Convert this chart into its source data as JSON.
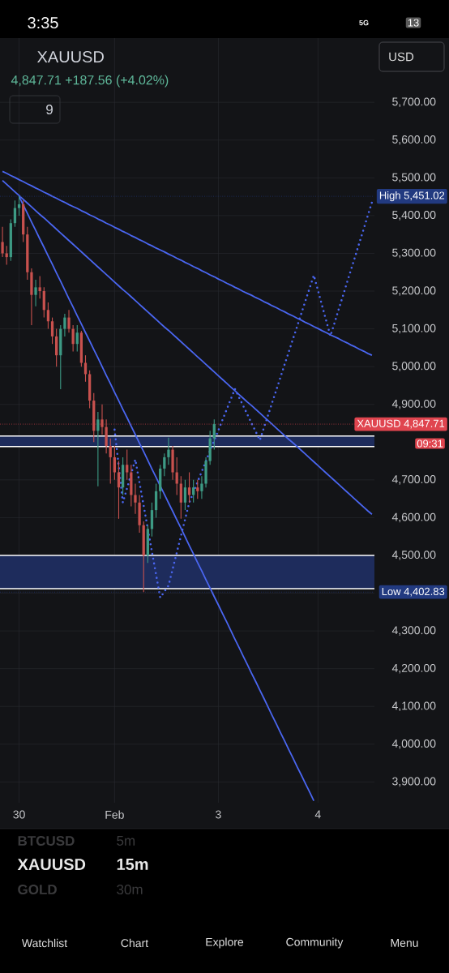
{
  "chart_data": {
    "type": "candlestick",
    "title": "XAUUSD",
    "subtitle": "4,847.71 +187.56 (+4.02%)",
    "categories": [
      null,
      null,
      null,
      null,
      "30",
      null,
      null,
      null,
      null,
      null,
      null,
      null,
      null,
      null,
      null,
      null,
      null,
      null,
      null,
      null,
      null,
      null,
      null,
      null,
      null,
      null,
      null,
      "Feb",
      null,
      null,
      null,
      null,
      null,
      null,
      null,
      null,
      null,
      null,
      null,
      null,
      null,
      null,
      null,
      null,
      null,
      null,
      null,
      null,
      null,
      null,
      null,
      null,
      "3",
      null,
      null,
      null,
      null,
      null,
      null,
      null,
      null,
      null,
      null,
      null,
      null,
      null,
      null,
      null,
      null,
      null,
      null,
      null,
      null,
      null,
      null,
      null,
      "4",
      null,
      null,
      null,
      null,
      null,
      null,
      null,
      null,
      null,
      null,
      null,
      null,
      null
    ],
    "ohlc": [
      [
        5330,
        5370,
        5290,
        5300
      ],
      [
        5300,
        5320,
        5270,
        5290
      ],
      [
        5290,
        5390,
        5280,
        5380
      ],
      [
        5380,
        5440,
        5370,
        5420
      ],
      [
        5420,
        5451.02,
        5400,
        5430
      ],
      [
        5430,
        5440,
        5330,
        5350
      ],
      [
        5350,
        5370,
        5230,
        5250
      ],
      [
        5250,
        5260,
        5110,
        5190
      ],
      [
        5190,
        5230,
        5160,
        5210
      ],
      [
        5210,
        5240,
        5180,
        5200
      ],
      [
        5200,
        5210,
        5130,
        5150
      ],
      [
        5150,
        5170,
        5100,
        5120
      ],
      [
        5120,
        5130,
        5060,
        5080
      ],
      [
        5080,
        5100,
        5000,
        5030
      ],
      [
        5030,
        5110,
        4940,
        5100
      ],
      [
        5100,
        5140,
        5080,
        5130
      ],
      [
        5130,
        5150,
        5090,
        5100
      ],
      [
        5100,
        5110,
        5040,
        5060
      ],
      [
        5060,
        5110,
        5040,
        5090
      ],
      [
        5090,
        5095,
        5000,
        5010
      ],
      [
        5010,
        5030,
        4960,
        4980
      ],
      [
        4980,
        4990,
        4890,
        4910
      ],
      [
        4910,
        4930,
        4800,
        4830
      ],
      [
        4830,
        4880,
        4683,
        4860
      ],
      [
        4860,
        4900,
        4820,
        4840
      ],
      [
        4840,
        4860,
        4770,
        4790
      ],
      [
        4790,
        4810,
        4690,
        4760
      ],
      [
        4760,
        4790,
        4700,
        4720
      ],
      [
        4720,
        4750,
        4597,
        4680
      ],
      [
        4680,
        4760,
        4660,
        4740
      ],
      [
        4740,
        4780,
        4700,
        4720
      ],
      [
        4720,
        4740,
        4630,
        4660
      ],
      [
        4660,
        4690,
        4610,
        4640
      ],
      [
        4640,
        4660,
        4560,
        4580
      ],
      [
        4580,
        4590,
        4402.83,
        4500
      ],
      [
        4500,
        4580,
        4480,
        4570
      ],
      [
        4570,
        4640,
        4550,
        4620
      ],
      [
        4620,
        4690,
        4600,
        4670
      ],
      [
        4670,
        4740,
        4650,
        4730
      ],
      [
        4730,
        4770,
        4710,
        4760
      ],
      [
        4760,
        4812,
        4740,
        4780
      ],
      [
        4780,
        4790,
        4700,
        4720
      ],
      [
        4720,
        4760,
        4660,
        4690
      ],
      [
        4690,
        4710,
        4597,
        4640
      ],
      [
        4640,
        4700,
        4620,
        4680
      ],
      [
        4680,
        4720,
        4640,
        4660
      ],
      [
        4660,
        4700,
        4640,
        4680
      ],
      [
        4680,
        4700,
        4650,
        4670
      ],
      [
        4670,
        4710,
        4650,
        4690
      ],
      [
        4690,
        4760,
        4680,
        4750
      ],
      [
        4750,
        4830,
        4740,
        4810
      ],
      [
        4810,
        4860,
        4780,
        4847.71
      ],
      null,
      null,
      null,
      null,
      null,
      null,
      null,
      null,
      null,
      null,
      null,
      null,
      null,
      null,
      null,
      null,
      null,
      null,
      null,
      null,
      null,
      null,
      null,
      null,
      null,
      null,
      null,
      null,
      null,
      null,
      null,
      null,
      null,
      null,
      null,
      null,
      null,
      null
    ],
    "colors": [
      "#c8514e",
      "#c8514e",
      "#3d9a84",
      "#3d9a84",
      "#3d9a84",
      "#c8514e",
      "#c8514e",
      "#c8514e",
      "#3d9a84",
      "#c8514e",
      "#c8514e",
      "#c8514e",
      "#c8514e",
      "#c8514e",
      "#3d9a84",
      "#3d9a84",
      "#c8514e",
      "#c8514e",
      "#3d9a84",
      "#c8514e",
      "#c8514e",
      "#c8514e",
      "#c8514e",
      "#3d9a84",
      "#c8514e",
      "#c8514e",
      "#c8514e",
      "#c8514e",
      "#c8514e",
      "#3d9a84",
      "#c8514e",
      "#c8514e",
      "#c8514e",
      "#c8514e",
      "#c8514e",
      "#3d9a84",
      "#3d9a84",
      "#3d9a84",
      "#3d9a84",
      "#3d9a84",
      "#3d9a84",
      "#c8514e",
      "#c8514e",
      "#c8514e",
      "#3d9a84",
      "#c8514e",
      "#3d9a84",
      "#c8514e",
      "#3d9a84",
      "#3d9a84",
      "#3d9a84",
      "#3d9a84",
      null,
      null,
      null,
      null,
      null,
      null,
      null,
      null,
      null,
      null,
      null,
      null,
      null,
      null,
      null,
      null,
      null,
      null,
      null,
      null,
      null,
      null,
      null,
      null,
      null,
      null,
      null,
      null,
      null,
      null,
      null,
      null,
      null,
      null,
      null,
      null,
      null,
      null
    ],
    "series": [
      {
        "type": "line",
        "color": "#4a66f0",
        "values": [
          5517,
          5512,
          5506,
          5501,
          5495,
          5490,
          5484,
          5479,
          5473,
          5468,
          5462,
          5457,
          5451,
          5446,
          5440,
          5435,
          5429,
          5424,
          5419,
          5413,
          5408,
          5402,
          5397,
          5391,
          5386,
          5380,
          5375,
          5369,
          5364,
          5358,
          5353,
          5347,
          5342,
          5336,
          5331,
          5325,
          5320,
          5314,
          5309,
          5304,
          5298,
          5293,
          5287,
          5282,
          5276,
          5271,
          5265,
          5260,
          5254,
          5249,
          5243,
          5238,
          5232,
          5227,
          5221,
          5216,
          5210,
          5205,
          5199,
          5194,
          5189,
          5183,
          5178,
          5172,
          5167,
          5161,
          5156,
          5150,
          5145,
          5139,
          5134,
          5128,
          5123,
          5117,
          5112,
          5106,
          5101,
          5095,
          5090,
          5084,
          5079,
          5074,
          5068,
          5063,
          5057,
          5052,
          5046,
          5041,
          5035,
          5030
        ]
      },
      {
        "type": "line",
        "color": "#4a66f0",
        "values": [
          5493,
          5483,
          5473,
          5463,
          5453,
          5443,
          5433,
          5423,
          5413,
          5403,
          5394,
          5384,
          5374,
          5364,
          5354,
          5344,
          5334,
          5324,
          5314,
          5304,
          5294,
          5284,
          5274,
          5264,
          5254,
          5244,
          5234,
          5224,
          5214,
          5204,
          5195,
          5185,
          5175,
          5165,
          5155,
          5145,
          5135,
          5125,
          5115,
          5105,
          5096,
          5086,
          5076,
          5066,
          5056,
          5046,
          5036,
          5026,
          5016,
          5006,
          4996,
          4986,
          4976,
          4966,
          4956,
          4946,
          4936,
          4926,
          4916,
          4906,
          4897,
          4887,
          4877,
          4867,
          4857,
          4847,
          4837,
          4827,
          4817,
          4807,
          4798,
          4788,
          4778,
          4768,
          4758,
          4748,
          4738,
          4728,
          4718,
          4708,
          4698,
          4688,
          4678,
          4668,
          4658,
          4648,
          4638,
          4628,
          4618,
          4609
        ]
      },
      {
        "type": "line",
        "color": "#4a66f0",
        "values": [
          null,
          null,
          null,
          null,
          5451,
          5428,
          5406,
          5383,
          5361,
          5338,
          5316,
          5293,
          5271,
          5248,
          5226,
          5203,
          5180,
          5158,
          5135,
          5113,
          5090,
          5068,
          5045,
          5023,
          5000,
          4977,
          4955,
          4932,
          4910,
          4887,
          4865,
          4842,
          4820,
          4797,
          4775,
          4752,
          4729,
          4707,
          4684,
          4662,
          4639,
          4617,
          4594,
          4572,
          4549,
          4526,
          4504,
          4481,
          4459,
          4436,
          4414,
          4391,
          4369,
          4346,
          4324,
          4301,
          4278,
          4256,
          4233,
          4211,
          4188,
          4166,
          4143,
          4121,
          4098,
          4075,
          4053,
          4030,
          4008,
          3985,
          3963,
          3940,
          3918,
          3895,
          3873,
          3850,
          null,
          null,
          null,
          null,
          null,
          null,
          null,
          null,
          null,
          null,
          null,
          null,
          null,
          null
        ]
      },
      {
        "type": "line",
        "color": "#4a66f0",
        "line_style": "dotted",
        "values": [
          null,
          null,
          null,
          null,
          null,
          null,
          null,
          null,
          null,
          null,
          null,
          null,
          null,
          null,
          null,
          null,
          null,
          null,
          null,
          null,
          null,
          null,
          null,
          null,
          null,
          null,
          null,
          4833,
          4737,
          4640,
          4678,
          4716,
          4754,
          4693,
          4632,
          4571,
          4510,
          4449,
          4388,
          4404,
          4420,
          4464,
          4508,
          4552,
          4596,
          4640,
          4667,
          4695,
          4722,
          4749,
          4777,
          4804,
          4831,
          4859,
          4886,
          4914,
          4941,
          4918,
          4896,
          4873,
          4850,
          4828,
          4805,
          4839,
          4872,
          4906,
          4939,
          4973,
          5007,
          5040,
          5074,
          5107,
          5141,
          5175,
          5208,
          5242,
          5202,
          5161,
          5121,
          5081,
          5116,
          5152,
          5187,
          5223,
          5258,
          5293,
          5329,
          5364,
          5400,
          5435
        ]
      }
    ],
    "bands": [
      {
        "axis": "y",
        "from": 4788,
        "to": 4816,
        "color": "#1e2c5c"
      },
      {
        "axis": "y",
        "from": 4412,
        "to": 4500,
        "color": "#1e2c5c"
      }
    ],
    "ref_lines": [
      {
        "axis": "y",
        "value": 5451.02,
        "label": "High 5,451.02",
        "color": "#223a80",
        "line_style": "dotted"
      },
      {
        "axis": "y",
        "value": 4402.83,
        "label": "Low 4,402.83",
        "color": "#223a80",
        "line_style": "dotted"
      },
      {
        "axis": "y",
        "value": 4847.71,
        "label": "XAUUSD 4,847.71",
        "color": "#e0454f",
        "line_style": "dotted"
      }
    ],
    "ylim": [
      3845,
      5870
    ],
    "yticks": [
      {
        "value": 5700,
        "label": "5,700.00"
      },
      {
        "value": 5600,
        "label": "5,600.00"
      },
      {
        "value": 5500,
        "label": "5,500.00"
      },
      {
        "value": 5400,
        "label": "5,400.00"
      },
      {
        "value": 5300,
        "label": "5,300.00"
      },
      {
        "value": 5200,
        "label": "5,200.00"
      },
      {
        "value": 5100,
        "label": "5,100.00"
      },
      {
        "value": 5000,
        "label": "5,000.00"
      },
      {
        "value": 4900,
        "label": "4,900.00"
      },
      {
        "value": 4800,
        "label": null
      },
      {
        "value": 4700,
        "label": "4,700.00"
      },
      {
        "value": 4600,
        "label": "4,600.00"
      },
      {
        "value": 4500,
        "label": "4,500.00"
      },
      {
        "value": 4400,
        "label": null
      },
      {
        "value": 4300,
        "label": "4,300.00"
      },
      {
        "value": 4200,
        "label": "4,200.00"
      },
      {
        "value": 4100,
        "label": "4,100.00"
      },
      {
        "value": 4000,
        "label": "4,000.00"
      },
      {
        "value": 3900,
        "label": "3,900.00"
      }
    ],
    "grid": true,
    "annotations": [
      "09:31",
      "3:35",
      "5G",
      "13",
      "USD",
      "9",
      "BTCUSD",
      "5m",
      "XAUUSD",
      "15m",
      "GOLD",
      "30m",
      "Watchlist",
      "Chart",
      "Explore",
      "Community",
      "Menu"
    ]
  }
}
